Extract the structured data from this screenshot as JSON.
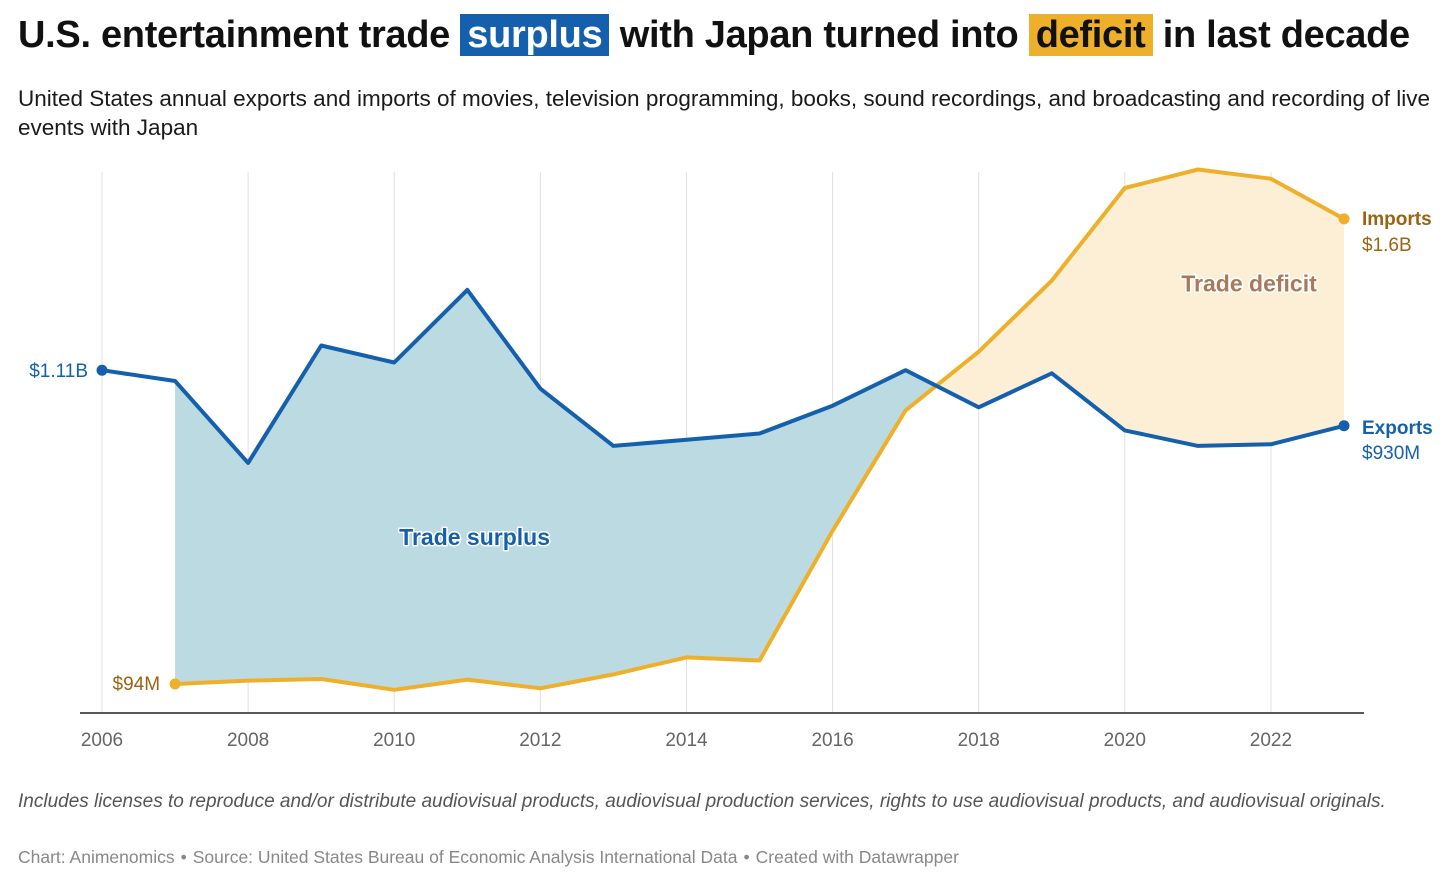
{
  "title": {
    "before": "U.S. entertainment trade ",
    "highlight1": "surplus",
    "middle": " with Japan turned into ",
    "highlight2": "deficit",
    "after": " in last decade"
  },
  "subtitle": "United States annual exports and imports of movies, television programming, books, sound recordings, and broadcasting and recording of live events with Japan",
  "note": "Includes licenses to reproduce and/or distribute audiovisual products, audiovisual production services, rights to use audiovisual products, and audiovisual originals.",
  "credits": {
    "chart": "Chart: Animenomics",
    "source": "Source: United States Bureau of Economic Analysis International Data",
    "created": "Created with Datawrapper",
    "separator": "•"
  },
  "colors": {
    "exports": "#1560ad",
    "imports": "#eeb02b",
    "surplus_fill": "#bcdae2",
    "deficit_fill": "#fdefd6",
    "imports_label": "#9a6410",
    "deficit_label": "#a9795c",
    "grid": "#e0e0e0",
    "tick_label": "#666666"
  },
  "chart_data": {
    "type": "area",
    "x": [
      2006,
      2007,
      2008,
      2009,
      2010,
      2011,
      2012,
      2013,
      2014,
      2015,
      2016,
      2017,
      2018,
      2019,
      2020,
      2021,
      2022,
      2023
    ],
    "xticks": [
      2006,
      2008,
      2010,
      2012,
      2014,
      2016,
      2018,
      2020,
      2022
    ],
    "xlim": [
      2006,
      2023
    ],
    "ylim": [
      0,
      1.7
    ],
    "unit": "billion USD",
    "grid": "vertical",
    "series": [
      {
        "name": "Exports",
        "color": "#1560ad",
        "values": [
          1.11,
          1.075,
          0.81,
          1.19,
          1.135,
          1.37,
          1.05,
          0.865,
          0.885,
          0.905,
          0.995,
          1.11,
          0.99,
          1.1,
          0.915,
          0.865,
          0.87,
          0.93
        ],
        "start_label": "$1.11B",
        "end_label_name": "Exports",
        "end_label_value": "$930M"
      },
      {
        "name": "Imports",
        "color": "#eeb02b",
        "x_start": 2007,
        "values": [
          null,
          0.094,
          0.105,
          0.11,
          0.075,
          0.108,
          0.08,
          0.125,
          0.18,
          0.17,
          0.59,
          0.98,
          1.17,
          1.4,
          1.7,
          1.76,
          1.73,
          1.6
        ],
        "start_label": "$94M",
        "end_label_name": "Imports",
        "end_label_value": "$1.6B"
      }
    ],
    "annotations": [
      {
        "text": "Trade surplus",
        "x": 2011.1,
        "y": 0.57
      },
      {
        "text": "Trade deficit",
        "x": 2021.7,
        "y": 1.39
      }
    ]
  }
}
